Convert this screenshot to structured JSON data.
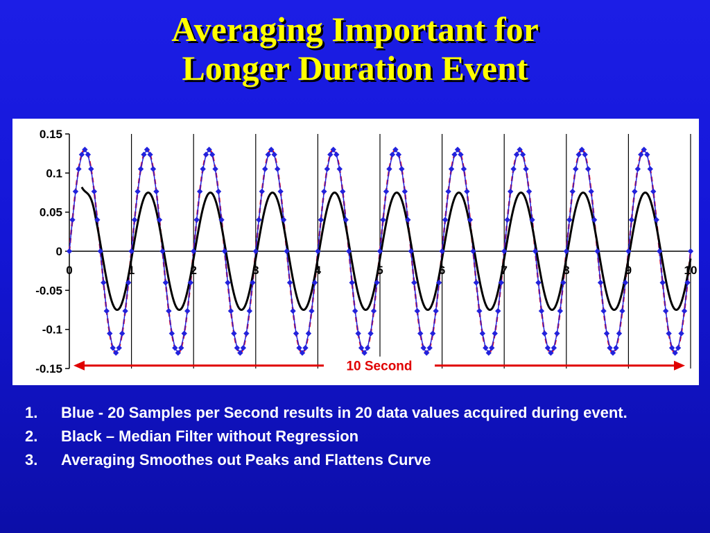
{
  "slide": {
    "title_line1": "Averaging Important for",
    "title_line2": "Longer Duration Event",
    "bullets": [
      {
        "num": "1.",
        "text": "Blue - 20 Samples per Second results in 20 data values acquired during event."
      },
      {
        "num": "2.",
        "text": "Black – Median Filter without Regression"
      },
      {
        "num": "3.",
        "text": "Averaging Smoothes out Peaks and Flattens Curve"
      }
    ]
  },
  "chart_data": {
    "type": "line",
    "title": "",
    "xlabel": "",
    "ylabel": "",
    "xlim": [
      0,
      10
    ],
    "ylim": [
      -0.15,
      0.15
    ],
    "x_ticks": [
      "0",
      "1",
      "2",
      "3",
      "4",
      "5",
      "6",
      "7",
      "8",
      "9",
      "10"
    ],
    "y_ticks": [
      "0.15",
      "0.1",
      "0.05",
      "0",
      "-0.05",
      "-0.1",
      "-0.15"
    ],
    "y_tick_values": [
      0.15,
      0.1,
      0.05,
      0,
      -0.05,
      -0.1,
      -0.15
    ],
    "grid": "vertical",
    "series": [
      {
        "color": "#2222dd",
        "style": "line-with-diamond-markers",
        "amplitude": 0.13,
        "frequency_hz": 1,
        "samples_per_second": 20
      },
      {
        "color": "#ff0000",
        "style": "dashed",
        "amplitude": 0.13,
        "frequency_hz": 1
      },
      {
        "color": "#000000",
        "style": "line",
        "amplitude": 0.075,
        "frequency_hz": 1,
        "start_x": 0.2,
        "start_y": 0.082
      }
    ],
    "annotation": {
      "text": "10 Second",
      "from_x": 0,
      "to_x": 10,
      "y": -0.148,
      "color": "#ff0000"
    }
  }
}
